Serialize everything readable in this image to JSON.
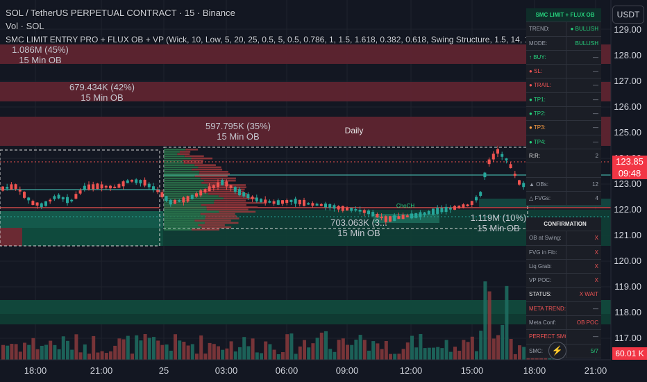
{
  "header": {
    "symbol_line": "SOL / TetherUS PERPETUAL CONTRACT · 15 · Binance",
    "volume_line": "Vol · SOL",
    "indicator_line": "SMC LIMIT ENTRY PRO + FLUX OB + VP (Wick, 10, Low, 5, 20, 25, 0.5, 5, 0.5, 0.786, 1, 1.5, 1.618, 0.382, 0.618, Swing Structure, 1.5, 14, 1, 60, 20, 1, 9,"
  },
  "currency_button": "USDT",
  "price_axis": {
    "labels": [
      "129.00",
      "128.00",
      "127.00",
      "126.00",
      "125.00",
      "124.00",
      "123.00",
      "122.00",
      "121.00",
      "120.00",
      "119.00",
      "118.00",
      "117.00"
    ],
    "current_price": "123.85",
    "countdown": "09:48",
    "volume_value": "60.01 K"
  },
  "time_axis": {
    "labels": [
      "18:00",
      "21:00",
      "25",
      "03:00",
      "06:00",
      "09:00",
      "12:00",
      "15:00",
      "18:00",
      "21:00"
    ]
  },
  "order_blocks": {
    "ob1": {
      "size": "1.086M (45%)",
      "tf": "15 Min OB"
    },
    "ob2": {
      "size": "679.434K (42%)",
      "tf": "15 Min OB"
    },
    "ob3": {
      "size": "597.795K (35%)",
      "tf": "15 Min OB"
    },
    "ob4": {
      "size": "703.063K (3...",
      "tf": "15 Min OB"
    },
    "ob5": {
      "size": "1.119M (10%)",
      "tf": "15 Min OB"
    },
    "daily": "Daily",
    "chch": "ChoCH"
  },
  "panel_top": {
    "title": "SMC LIMIT + FLUX OB",
    "rows": [
      {
        "k": "TREND:",
        "v": "● BULLISH"
      },
      {
        "k": "MODE:",
        "v": "BULLISH"
      },
      {
        "k": "↑ BUY:",
        "v": "—"
      },
      {
        "k": "● SL:",
        "v": "—"
      },
      {
        "k": "● TRAIL:",
        "v": "—"
      },
      {
        "k": "● TP1:",
        "v": "—"
      },
      {
        "k": "● TP2:",
        "v": "—"
      },
      {
        "k": "● TP3:",
        "v": "—"
      },
      {
        "k": "● TP4:",
        "v": "—"
      },
      {
        "k": "R:R:",
        "v": "2"
      },
      {
        "k": "",
        "v": ""
      },
      {
        "k": "▲ OBs:",
        "v": "12"
      },
      {
        "k": "△ FVGs:",
        "v": "4"
      }
    ]
  },
  "panel_bottom": {
    "title": "CONFIRMATION",
    "rows": [
      {
        "k": "OB at Swing:",
        "v": "X"
      },
      {
        "k": "FVG in Fib:",
        "v": "X"
      },
      {
        "k": "Liq Grab:",
        "v": "X"
      },
      {
        "k": "VP POC:",
        "v": "X"
      },
      {
        "k": "STATUS:",
        "v": "X WAIT"
      },
      {
        "k": "META TREND:",
        "v": "—"
      },
      {
        "k": "Meta Conf:",
        "v": "OB POC"
      },
      {
        "k": "PERFECT SMC:",
        "v": "—"
      },
      {
        "k": "SMC:",
        "v": "5/7"
      }
    ]
  },
  "colors": {
    "bull": "#26a69a",
    "bear": "#ef5350",
    "background": "#131722",
    "bull_ob": "#1e5a4c",
    "bear_ob": "#6b2a33"
  },
  "icons": {
    "lightning": "lightning-icon"
  }
}
